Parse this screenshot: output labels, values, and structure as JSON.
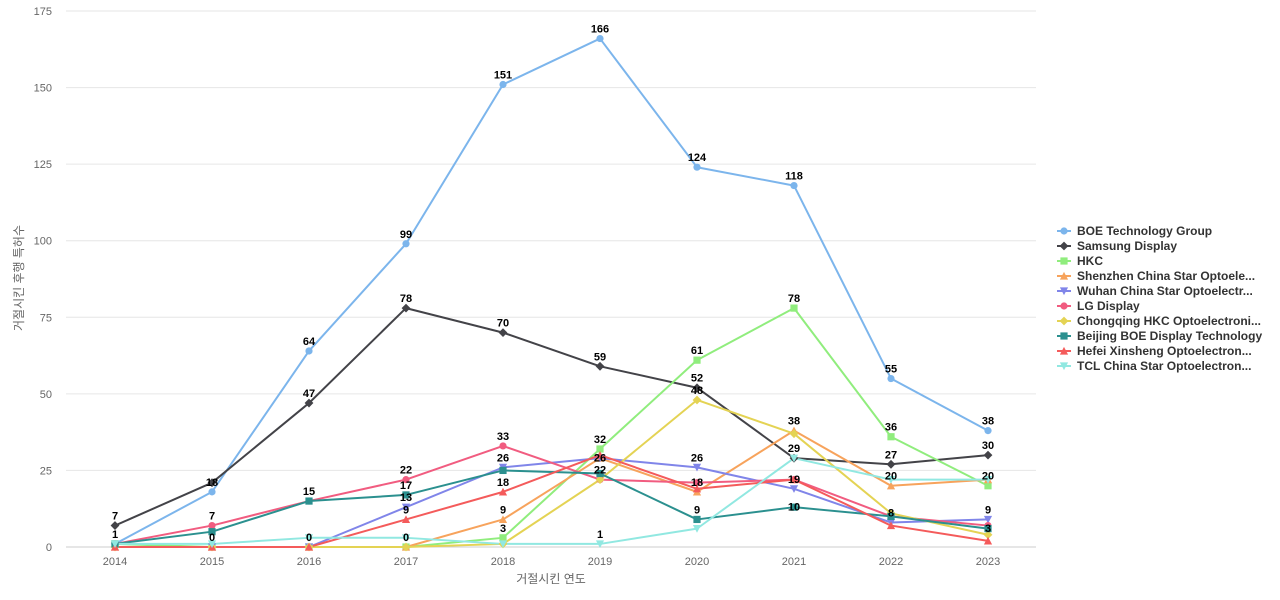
{
  "chart_data": {
    "type": "line",
    "xlabel": "거절시킨 연도",
    "ylabel": "거절시킨 후행 특허수",
    "ylim": [
      0,
      175
    ],
    "yticks": [
      0,
      25,
      50,
      75,
      100,
      125,
      150,
      175
    ],
    "grid": true,
    "legend_position": "right",
    "categories": [
      "2014",
      "2015",
      "2016",
      "2017",
      "2018",
      "2019",
      "2020",
      "2021",
      "2022",
      "2023"
    ],
    "series": [
      {
        "name": "BOE Technology Group",
        "color": "#7cb5ec",
        "marker": "circle",
        "values": [
          1,
          18,
          64,
          99,
          151,
          166,
          124,
          118,
          55,
          38
        ]
      },
      {
        "name": "Samsung Display",
        "color": "#434348",
        "marker": "diamond",
        "values": [
          7,
          21,
          47,
          78,
          70,
          59,
          52,
          29,
          27,
          30
        ]
      },
      {
        "name": "HKC",
        "color": "#90ed7d",
        "marker": "square",
        "values": [
          1,
          0,
          0,
          0,
          3,
          32,
          61,
          78,
          36,
          20
        ]
      },
      {
        "name": "Shenzhen China Star Optoele...",
        "color": "#f7a35c",
        "marker": "triangle",
        "values": [
          0,
          0,
          0,
          0,
          9,
          29,
          18,
          38,
          20,
          22
        ]
      },
      {
        "name": "Wuhan China Star Optoelectr...",
        "color": "#8085e9",
        "marker": "triangle-down",
        "values": [
          0,
          0,
          0,
          13,
          26,
          29,
          26,
          19,
          8,
          9
        ]
      },
      {
        "name": "LG Display",
        "color": "#f15c80",
        "marker": "circle",
        "values": [
          1,
          7,
          15,
          22,
          33,
          22,
          21,
          22,
          10,
          7
        ]
      },
      {
        "name": "Chongqing HKC Optoelectroni...",
        "color": "#e4d354",
        "marker": "diamond",
        "values": [
          0,
          0,
          0,
          0,
          1,
          22,
          48,
          37,
          11,
          4
        ]
      },
      {
        "name": "Beijing BOE Display Technology",
        "color": "#2b908f",
        "marker": "square",
        "values": [
          1,
          5,
          15,
          17,
          25,
          24,
          9,
          13,
          10,
          6
        ]
      },
      {
        "name": "Hefei Xinsheng Optoelectron...",
        "color": "#f45b5b",
        "marker": "triangle",
        "values": [
          0,
          0,
          0,
          9,
          18,
          30,
          19,
          22,
          7,
          2
        ]
      },
      {
        "name": "TCL China Star Optoelectron...",
        "color": "#91e8e1",
        "marker": "triangle-down",
        "values": [
          1,
          1,
          3,
          3,
          1,
          1,
          6,
          29,
          22,
          22
        ]
      }
    ],
    "data_labels": [
      {
        "x": "2014",
        "value": "7"
      },
      {
        "x": "2014",
        "value": "1"
      },
      {
        "x": "2015",
        "value": "18"
      },
      {
        "x": "2015",
        "value": "7"
      },
      {
        "x": "2015",
        "value": "0"
      },
      {
        "x": "2016",
        "value": "64"
      },
      {
        "x": "2016",
        "value": "47"
      },
      {
        "x": "2016",
        "value": "15"
      },
      {
        "x": "2016",
        "value": "0"
      },
      {
        "x": "2017",
        "value": "99"
      },
      {
        "x": "2017",
        "value": "78"
      },
      {
        "x": "2017",
        "value": "22"
      },
      {
        "x": "2017",
        "value": "17"
      },
      {
        "x": "2017",
        "value": "13"
      },
      {
        "x": "2017",
        "value": "9"
      },
      {
        "x": "2017",
        "value": "0"
      },
      {
        "x": "2018",
        "value": "151"
      },
      {
        "x": "2018",
        "value": "70"
      },
      {
        "x": "2018",
        "value": "33"
      },
      {
        "x": "2018",
        "value": "26"
      },
      {
        "x": "2018",
        "value": "18"
      },
      {
        "x": "2018",
        "value": "9"
      },
      {
        "x": "2018",
        "value": "3"
      },
      {
        "x": "2019",
        "value": "166"
      },
      {
        "x": "2019",
        "value": "59"
      },
      {
        "x": "2019",
        "value": "32"
      },
      {
        "x": "2019",
        "value": "26"
      },
      {
        "x": "2019",
        "value": "22"
      },
      {
        "x": "2019",
        "value": "1"
      },
      {
        "x": "2020",
        "value": "124"
      },
      {
        "x": "2020",
        "value": "61"
      },
      {
        "x": "2020",
        "value": "52"
      },
      {
        "x": "2020",
        "value": "48"
      },
      {
        "x": "2020",
        "value": "26"
      },
      {
        "x": "2020",
        "value": "18"
      },
      {
        "x": "2020",
        "value": "9"
      },
      {
        "x": "2021",
        "value": "118"
      },
      {
        "x": "2021",
        "value": "78"
      },
      {
        "x": "2021",
        "value": "38"
      },
      {
        "x": "2021",
        "value": "29"
      },
      {
        "x": "2021",
        "value": "19"
      },
      {
        "x": "2021",
        "value": "10"
      },
      {
        "x": "2022",
        "value": "55"
      },
      {
        "x": "2022",
        "value": "36"
      },
      {
        "x": "2022",
        "value": "27"
      },
      {
        "x": "2022",
        "value": "20"
      },
      {
        "x": "2022",
        "value": "8"
      },
      {
        "x": "2023",
        "value": "38"
      },
      {
        "x": "2023",
        "value": "30"
      },
      {
        "x": "2023",
        "value": "20"
      },
      {
        "x": "2023",
        "value": "9"
      },
      {
        "x": "2023",
        "value": "3"
      }
    ]
  }
}
